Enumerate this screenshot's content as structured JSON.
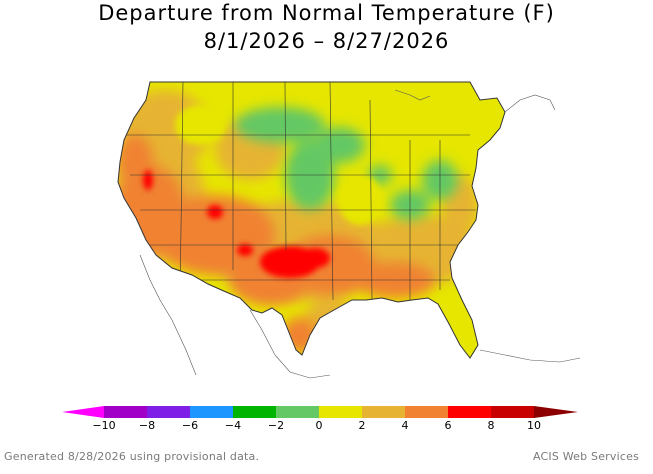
{
  "title": {
    "line1": "Departure from Normal Temperature (F)",
    "line2": "8/1/2026 – 8/27/2026"
  },
  "legend": {
    "bins": [
      {
        "color": "#ff00ff"
      },
      {
        "color": "#a000c8"
      },
      {
        "color": "#7e1ee6"
      },
      {
        "color": "#1e96ff"
      },
      {
        "color": "#00b400"
      },
      {
        "color": "#64c864"
      },
      {
        "color": "#e6e600"
      },
      {
        "color": "#e6b432"
      },
      {
        "color": "#f08232"
      },
      {
        "color": "#ff0000"
      },
      {
        "color": "#c80000"
      },
      {
        "color": "#8c0000"
      }
    ],
    "ticks": [
      {
        "label": "−10",
        "value": -10
      },
      {
        "label": "−8",
        "value": -8
      },
      {
        "label": "−6",
        "value": -6
      },
      {
        "label": "−4",
        "value": -4
      },
      {
        "label": "−2",
        "value": -2
      },
      {
        "label": "0",
        "value": 0
      },
      {
        "label": "2",
        "value": 2
      },
      {
        "label": "4",
        "value": 4
      },
      {
        "label": "6",
        "value": 6
      },
      {
        "label": "8",
        "value": 8
      },
      {
        "label": "10",
        "value": 10
      }
    ]
  },
  "footer": {
    "generated": "Generated 8/28/2026 using provisional data.",
    "source": "ACIS Web Services"
  },
  "map_colors": {
    "yellow": "#e6e600",
    "lightgreen": "#64c864",
    "gold": "#e6b432",
    "orange": "#f08232",
    "red": "#ff0000",
    "outline": "#333333"
  }
}
